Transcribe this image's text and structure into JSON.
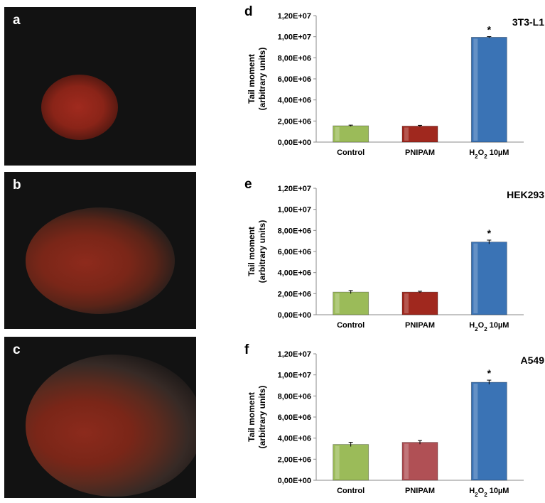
{
  "panels": {
    "a": "a",
    "b": "b",
    "c": "c"
  },
  "chart_data": [
    {
      "type": "bar",
      "panel_label": "d",
      "title": "3T3-L1",
      "ylabel_line1": "Tail moment",
      "ylabel_line2": "(arbitrary units)",
      "categories": [
        "Control",
        "PNIPAM",
        "H2O2 10µM"
      ],
      "values": [
        1550000,
        1520000,
        9950000
      ],
      "errors": [
        60000,
        70000,
        60000
      ],
      "significance": [
        "",
        "",
        "*"
      ],
      "bar_colors": [
        "#9bbb59",
        "#a0281e",
        "#3a73b5"
      ],
      "ylim": [
        0,
        12000000
      ],
      "yticks": [
        "0,00E+00",
        "2,00E+06",
        "4,00E+06",
        "6,00E+06",
        "8,00E+06",
        "1,00E+07",
        "1,20E+07"
      ],
      "grid": false
    },
    {
      "type": "bar",
      "panel_label": "e",
      "title": "HEK293",
      "ylabel_line1": "Tail moment",
      "ylabel_line2": "(arbitrary units)",
      "categories": [
        "Control",
        "PNIPAM",
        "H2O2 10µM"
      ],
      "values": [
        2150000,
        2150000,
        6900000
      ],
      "errors": [
        150000,
        80000,
        180000
      ],
      "significance": [
        "",
        "",
        "*"
      ],
      "bar_colors": [
        "#9bbb59",
        "#a0281e",
        "#3a73b5"
      ],
      "ylim": [
        0,
        12000000
      ],
      "yticks": [
        "0,00E+00",
        "2,00E+06",
        "4,00E+06",
        "6,00E+06",
        "8,00E+06",
        "1,00E+07",
        "1,20E+07"
      ],
      "grid": false
    },
    {
      "type": "bar",
      "panel_label": "f",
      "title": "A549",
      "ylabel_line1": "Tail moment",
      "ylabel_line2": "(arbitrary units)",
      "categories": [
        "Control",
        "PNIPAM",
        "H2O2 10µM"
      ],
      "values": [
        3400000,
        3600000,
        9300000
      ],
      "errors": [
        200000,
        180000,
        200000
      ],
      "significance": [
        "",
        "",
        "*"
      ],
      "bar_colors": [
        "#9bbb59",
        "#b05055",
        "#3a73b5"
      ],
      "ylim": [
        0,
        12000000
      ],
      "yticks": [
        "0,00E+00",
        "2,00E+06",
        "4,00E+06",
        "6,00E+06",
        "8,00E+06",
        "1,00E+07",
        "1,20E+07"
      ],
      "grid": false
    }
  ]
}
